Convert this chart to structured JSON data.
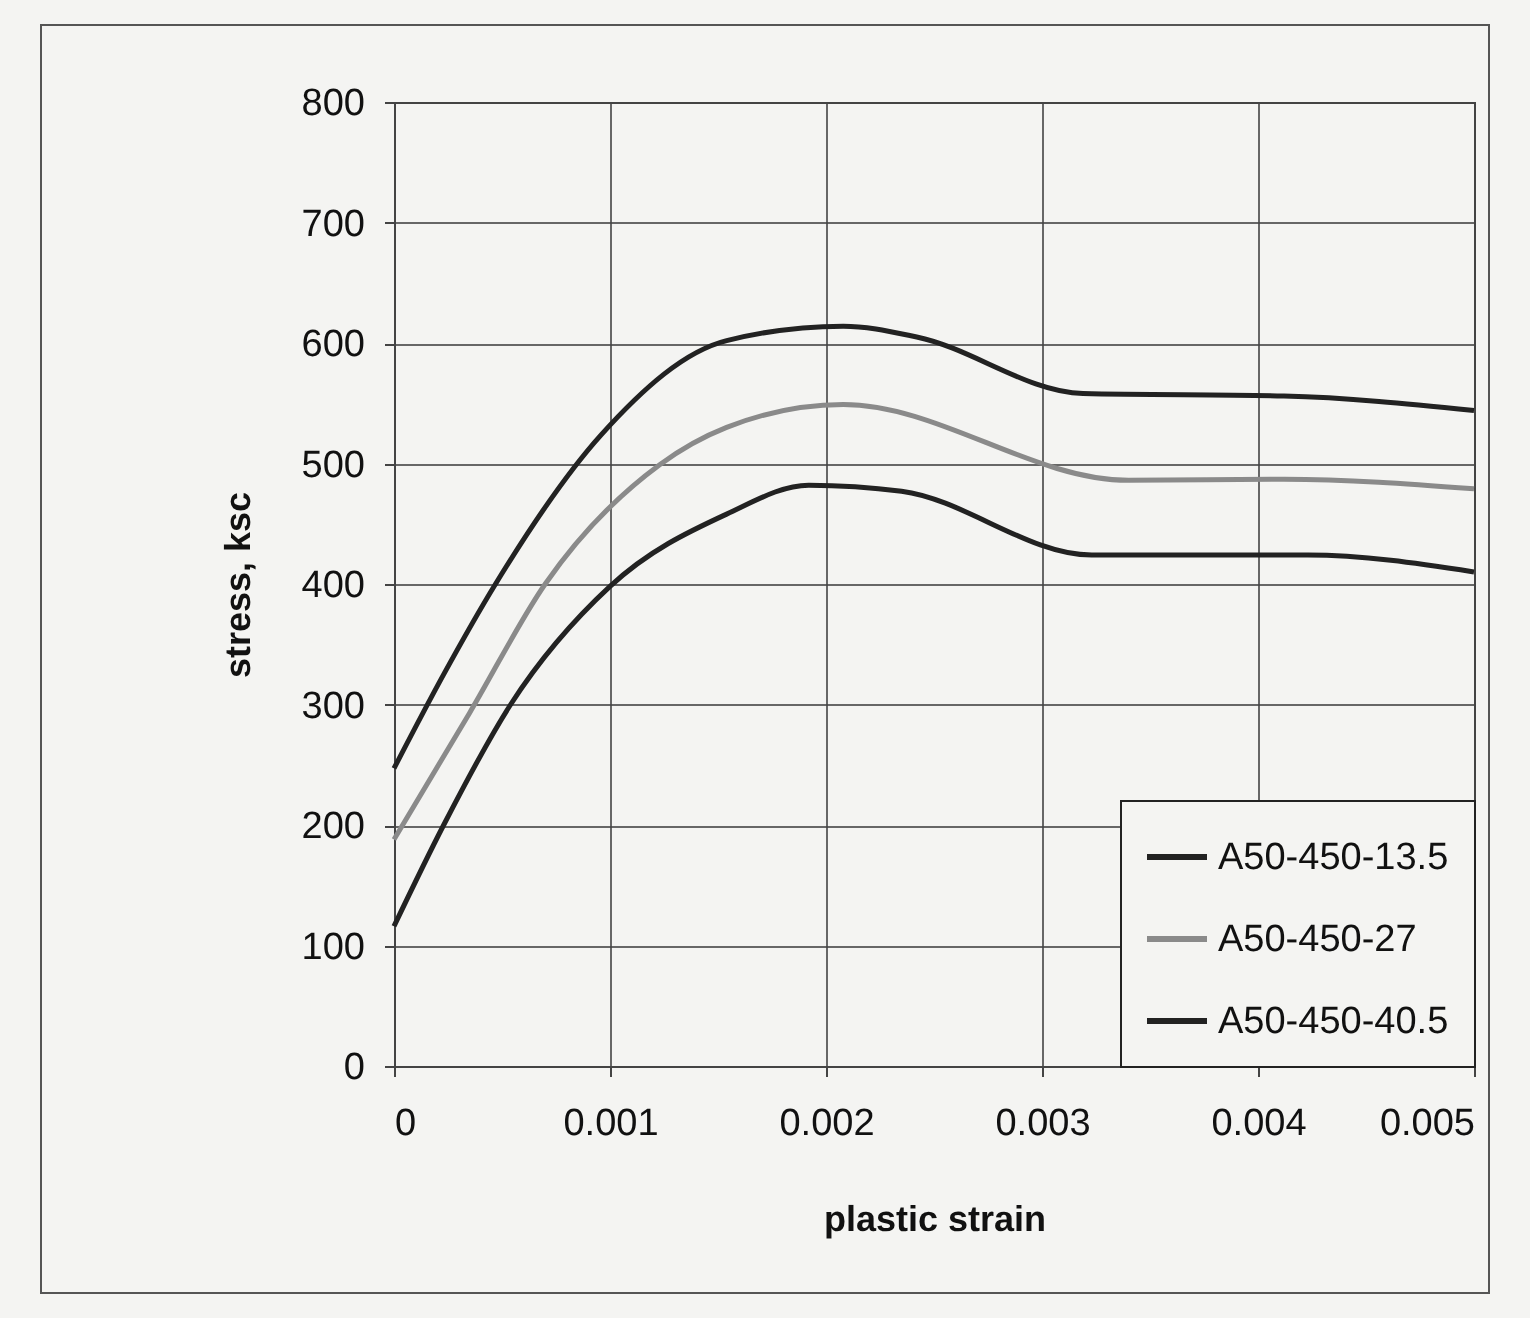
{
  "chart_data": {
    "type": "line",
    "xlabel": "plastic strain",
    "ylabel": "stress, ksc",
    "xlim": [
      0,
      0.005
    ],
    "ylim": [
      0,
      800
    ],
    "xticks": [
      0,
      0.001,
      0.002,
      0.003,
      0.004,
      0.005
    ],
    "yticks": [
      0,
      100,
      200,
      300,
      400,
      500,
      600,
      700,
      800
    ],
    "grid": true,
    "legend": "bottom right",
    "marker": "none",
    "line_style": "solid",
    "series": [
      {
        "name": "A50-450-13.5",
        "color": "#222222",
        "x": [
          0,
          0.00023,
          0.00054,
          0.001,
          0.00154,
          0.00192,
          0.00235,
          0.00323,
          0.00423,
          0.005
        ],
        "values": [
          116,
          200,
          300,
          398,
          458,
          482,
          477,
          424,
          424,
          410
        ]
      },
      {
        "name": "A50-450-27",
        "color": "#8a8a8a",
        "x": [
          0,
          0.00035,
          0.0007,
          0.00123,
          0.00154,
          0.00208,
          0.0034,
          0.00412,
          0.005
        ],
        "values": [
          188,
          293,
          400,
          499,
          530,
          549,
          486,
          487,
          479
        ]
      },
      {
        "name": "A50-450-40.5",
        "color": "#222222",
        "x": [
          0,
          0.00023,
          0.00047,
          0.00096,
          0.00154,
          0.00208,
          0.00242,
          0.00319,
          0.00412,
          0.005
        ],
        "values": [
          247,
          325,
          400,
          524,
          602,
          614,
          605,
          558,
          556,
          544
        ]
      }
    ]
  }
}
